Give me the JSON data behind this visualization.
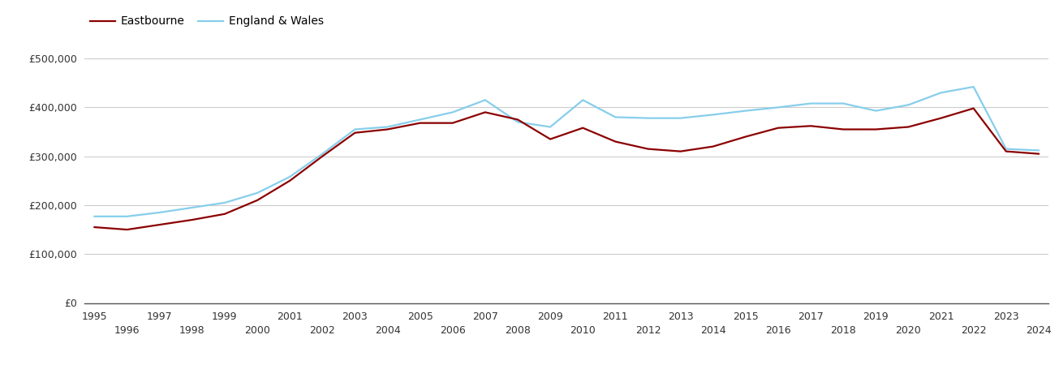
{
  "years": [
    1995,
    1996,
    1997,
    1998,
    1999,
    2000,
    2001,
    2002,
    2003,
    2004,
    2005,
    2006,
    2007,
    2008,
    2009,
    2010,
    2011,
    2012,
    2013,
    2014,
    2015,
    2016,
    2017,
    2018,
    2019,
    2020,
    2021,
    2022,
    2023,
    2024
  ],
  "eastbourne": [
    155000,
    150000,
    160000,
    170000,
    182000,
    210000,
    250000,
    300000,
    348000,
    355000,
    368000,
    368000,
    390000,
    375000,
    335000,
    358000,
    330000,
    315000,
    310000,
    320000,
    340000,
    358000,
    362000,
    355000,
    355000,
    360000,
    378000,
    398000,
    310000,
    305000
  ],
  "england_wales": [
    177000,
    177000,
    185000,
    195000,
    205000,
    225000,
    258000,
    305000,
    355000,
    360000,
    375000,
    390000,
    415000,
    370000,
    360000,
    415000,
    380000,
    378000,
    378000,
    385000,
    393000,
    400000,
    408000,
    408000,
    393000,
    405000,
    430000,
    442000,
    315000,
    312000
  ],
  "eastbourne_color": "#8B0000",
  "england_wales_color": "#87CEEB",
  "background_color": "#ffffff",
  "grid_color": "#cccccc",
  "yticks": [
    0,
    100000,
    200000,
    300000,
    400000,
    500000
  ],
  "ylim": [
    0,
    530000
  ],
  "linewidth": 1.6,
  "legend_eastbourne": "Eastbourne",
  "legend_england_wales": "England & Wales"
}
